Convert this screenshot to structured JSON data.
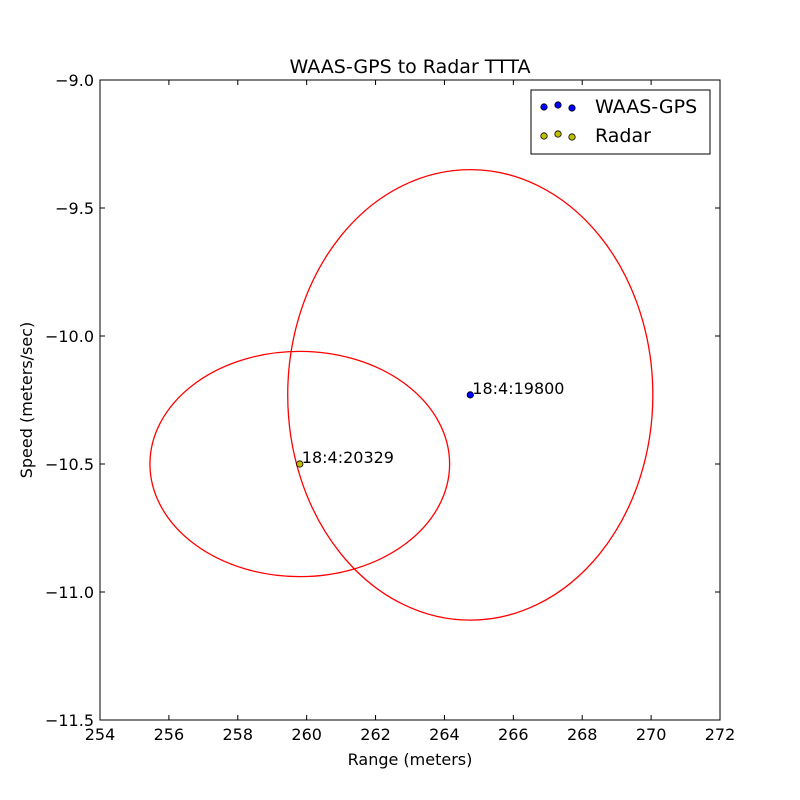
{
  "chart_data": {
    "type": "scatter",
    "title": "WAAS-GPS to Radar TTTA",
    "xlabel": "Range (meters)",
    "ylabel": "Speed (meters/sec)",
    "xlim": [
      254,
      272
    ],
    "ylim": [
      -11.5,
      -9.0
    ],
    "xticks": [
      254,
      256,
      258,
      260,
      262,
      264,
      266,
      268,
      270,
      272
    ],
    "xtick_labels": [
      "254",
      "256",
      "258",
      "260",
      "262",
      "264",
      "266",
      "268",
      "270",
      "272"
    ],
    "yticks": [
      -9.0,
      -9.5,
      -10.0,
      -10.5,
      -11.0,
      -11.5
    ],
    "ytick_labels": [
      "−9.0",
      "−9.5",
      "−10.0",
      "−10.5",
      "−11.0",
      "−11.5"
    ],
    "grid": false,
    "legend_position": "top-right",
    "series": [
      {
        "name": "WAAS-GPS",
        "color": "#0000ff",
        "points": [
          {
            "x": 264.75,
            "y": -10.23,
            "label": "18:4:19800"
          }
        ],
        "ellipse": {
          "cx": 264.75,
          "cy": -10.23,
          "rx": 5.3,
          "ry": 0.88,
          "color": "#ff0000"
        }
      },
      {
        "name": "Radar",
        "color": "#bfbf00",
        "points": [
          {
            "x": 259.8,
            "y": -10.5,
            "label": "18:4:20329"
          }
        ],
        "ellipse": {
          "cx": 259.8,
          "cy": -10.5,
          "rx": 4.35,
          "ry": 0.44,
          "color": "#ff0000"
        }
      }
    ]
  }
}
